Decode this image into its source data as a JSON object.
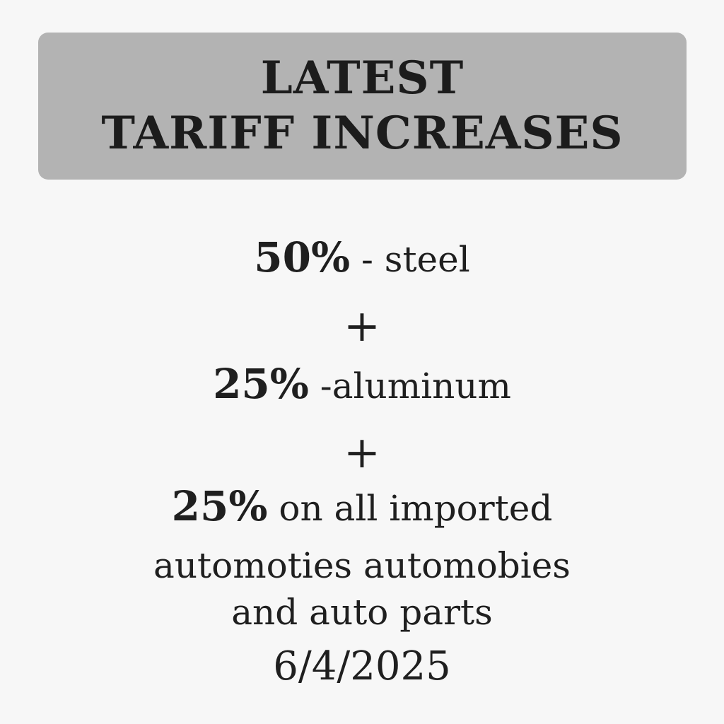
{
  "header": {
    "line1": "LATEST",
    "line2": "TARIFF INCREASES"
  },
  "items": [
    {
      "rate": "50%",
      "separator": " - ",
      "text": "steel"
    },
    {
      "rate": "25%",
      "separator": " -",
      "text": "aluminum"
    },
    {
      "rate": "25%",
      "separator": " ",
      "text": "on all imported"
    }
  ],
  "plus_sign": "+",
  "detail_lines": [
    "automoties automobies",
    "and auto parts"
  ],
  "date": "6/4/2025"
}
